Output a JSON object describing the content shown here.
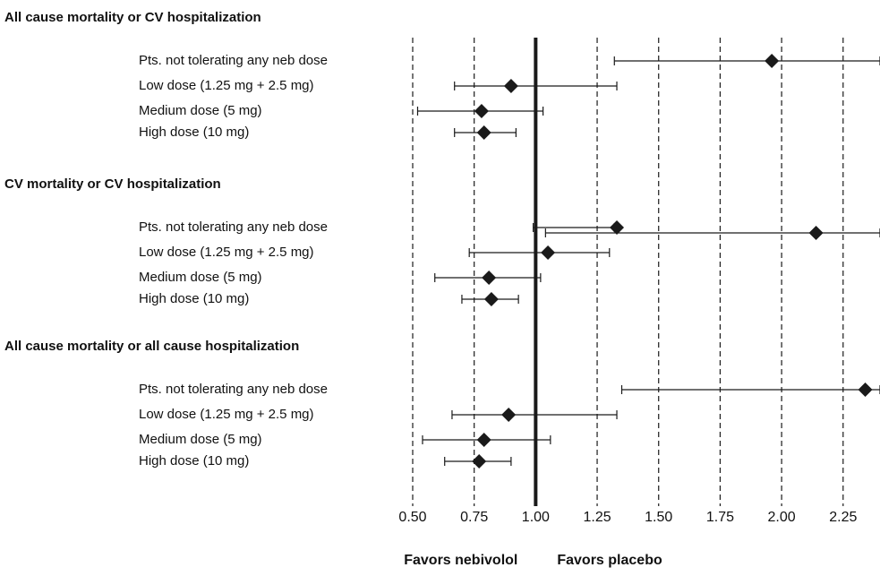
{
  "chart_data": {
    "type": "forest",
    "groups": [
      {
        "title": "All cause mortality or CV hospitalization",
        "rows": [
          {
            "label": "Pts. not tolerating any neb dose",
            "estimates": [
              {
                "est": 1.96,
                "lo": 1.32,
                "hi": 2.4
              }
            ]
          },
          {
            "label": "Low dose (1.25 mg + 2.5 mg)",
            "estimates": [
              {
                "est": 0.9,
                "lo": 0.67,
                "hi": 1.33
              }
            ]
          },
          {
            "label": "Medium dose (5 mg)",
            "estimates": [
              {
                "est": 0.78,
                "lo": 0.52,
                "hi": 1.03
              }
            ]
          },
          {
            "label": "High dose (10 mg)",
            "estimates": [
              {
                "est": 0.79,
                "lo": 0.67,
                "hi": 0.92
              }
            ]
          }
        ]
      },
      {
        "title": "CV mortality or CV hospitalization",
        "rows": [
          {
            "label": "Pts. not tolerating any neb dose",
            "estimates": [
              {
                "est": 1.33,
                "lo": 0.99,
                "hi": 1.32
              },
              {
                "est": 2.14,
                "lo": 1.04,
                "hi": 2.4
              }
            ]
          },
          {
            "label": "Low dose (1.25 mg + 2.5 mg)",
            "estimates": [
              {
                "est": 1.05,
                "lo": 0.73,
                "hi": 1.3
              }
            ]
          },
          {
            "label": "Medium dose (5 mg)",
            "estimates": [
              {
                "est": 0.81,
                "lo": 0.59,
                "hi": 1.02
              }
            ]
          },
          {
            "label": "High dose (10 mg)",
            "estimates": [
              {
                "est": 0.82,
                "lo": 0.7,
                "hi": 0.93
              }
            ]
          }
        ]
      },
      {
        "title": "All cause mortality or all cause hospitalization",
        "rows": [
          {
            "label": "Pts. not tolerating any neb dose",
            "estimates": [
              {
                "est": 2.34,
                "lo": 1.35,
                "hi": 2.4
              }
            ]
          },
          {
            "label": "Low dose (1.25 mg + 2.5 mg)",
            "estimates": [
              {
                "est": 0.89,
                "lo": 0.66,
                "hi": 1.33
              }
            ]
          },
          {
            "label": "Medium dose (5 mg)",
            "estimates": [
              {
                "est": 0.79,
                "lo": 0.54,
                "hi": 1.06
              }
            ]
          },
          {
            "label": "High dose (10 mg)",
            "estimates": [
              {
                "est": 0.77,
                "lo": 0.63,
                "hi": 0.9
              }
            ]
          }
        ]
      }
    ],
    "xlim": [
      0.5,
      2.4
    ],
    "xticks": [
      {
        "value": 0.5,
        "label": "0.50"
      },
      {
        "value": 0.75,
        "label": "0.75"
      },
      {
        "value": 1,
        "label": "1.00"
      },
      {
        "value": 1.25,
        "label": "1.25"
      },
      {
        "value": 1.5,
        "label": "1.50"
      },
      {
        "value": 1.75,
        "label": "1.75"
      },
      {
        "value": 2,
        "label": "2.00"
      },
      {
        "value": 2.25,
        "label": "2.25"
      }
    ],
    "reference": 1,
    "annotations": [
      "Favors nebivolol",
      "Favors placebo"
    ],
    "color": "#1a1a1a",
    "grid": true
  }
}
